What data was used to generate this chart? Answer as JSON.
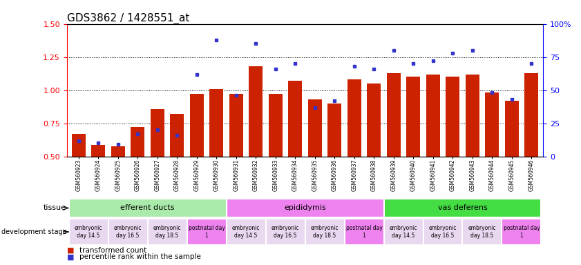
{
  "title": "GDS3862 / 1428551_at",
  "samples": [
    "GSM560923",
    "GSM560924",
    "GSM560925",
    "GSM560926",
    "GSM560927",
    "GSM560928",
    "GSM560929",
    "GSM560930",
    "GSM560931",
    "GSM560932",
    "GSM560933",
    "GSM560934",
    "GSM560935",
    "GSM560936",
    "GSM560937",
    "GSM560938",
    "GSM560939",
    "GSM560940",
    "GSM560941",
    "GSM560942",
    "GSM560943",
    "GSM560944",
    "GSM560945",
    "GSM560946"
  ],
  "red_values": [
    0.67,
    0.585,
    0.575,
    0.72,
    0.855,
    0.82,
    0.97,
    1.01,
    0.97,
    1.18,
    0.97,
    1.07,
    0.93,
    0.9,
    1.08,
    1.05,
    1.13,
    1.1,
    1.12,
    1.1,
    1.12,
    0.98,
    0.92,
    1.13
  ],
  "blue_values_pct": [
    12,
    10,
    9,
    17,
    20,
    16,
    62,
    88,
    46,
    85,
    66,
    70,
    37,
    42,
    68,
    66,
    80,
    70,
    72,
    78,
    80,
    48,
    43,
    70
  ],
  "tissue_groups": [
    {
      "label": "efferent ducts",
      "start": 0,
      "end": 7,
      "color": "#aaeaaa"
    },
    {
      "label": "epididymis",
      "start": 8,
      "end": 15,
      "color": "#ee82ee"
    },
    {
      "label": "vas deferens",
      "start": 16,
      "end": 23,
      "color": "#44dd44"
    }
  ],
  "dev_stage_groups": [
    {
      "label": "embryonic\nday 14.5",
      "start": 0,
      "end": 1,
      "color": "#e8d8f0"
    },
    {
      "label": "embryonic\nday 16.5",
      "start": 2,
      "end": 3,
      "color": "#e8d8f0"
    },
    {
      "label": "embryonic\nday 18.5",
      "start": 4,
      "end": 5,
      "color": "#e8d8f0"
    },
    {
      "label": "postnatal day\n1",
      "start": 6,
      "end": 7,
      "color": "#ee82ee"
    },
    {
      "label": "embryonic\nday 14.5",
      "start": 8,
      "end": 9,
      "color": "#e8d8f0"
    },
    {
      "label": "embryonic\nday 16.5",
      "start": 10,
      "end": 11,
      "color": "#e8d8f0"
    },
    {
      "label": "embryonic\nday 18.5",
      "start": 12,
      "end": 13,
      "color": "#e8d8f0"
    },
    {
      "label": "postnatal day\n1",
      "start": 14,
      "end": 15,
      "color": "#ee82ee"
    },
    {
      "label": "embryonic\nday 14.5",
      "start": 16,
      "end": 17,
      "color": "#e8d8f0"
    },
    {
      "label": "embryonic\nday 16.5",
      "start": 18,
      "end": 19,
      "color": "#e8d8f0"
    },
    {
      "label": "embryonic\nday 18.5",
      "start": 20,
      "end": 21,
      "color": "#e8d8f0"
    },
    {
      "label": "postnatal day\n1",
      "start": 22,
      "end": 23,
      "color": "#ee82ee"
    }
  ],
  "ylim": [
    0.5,
    1.5
  ],
  "yticks_left": [
    0.5,
    0.75,
    1.0,
    1.25,
    1.5
  ],
  "yticks_right": [
    0,
    25,
    50,
    75,
    100
  ],
  "bar_color": "#cc2200",
  "dot_color": "#3333cc",
  "background_color": "#ffffff",
  "title_fontsize": 11,
  "bar_width": 0.7
}
